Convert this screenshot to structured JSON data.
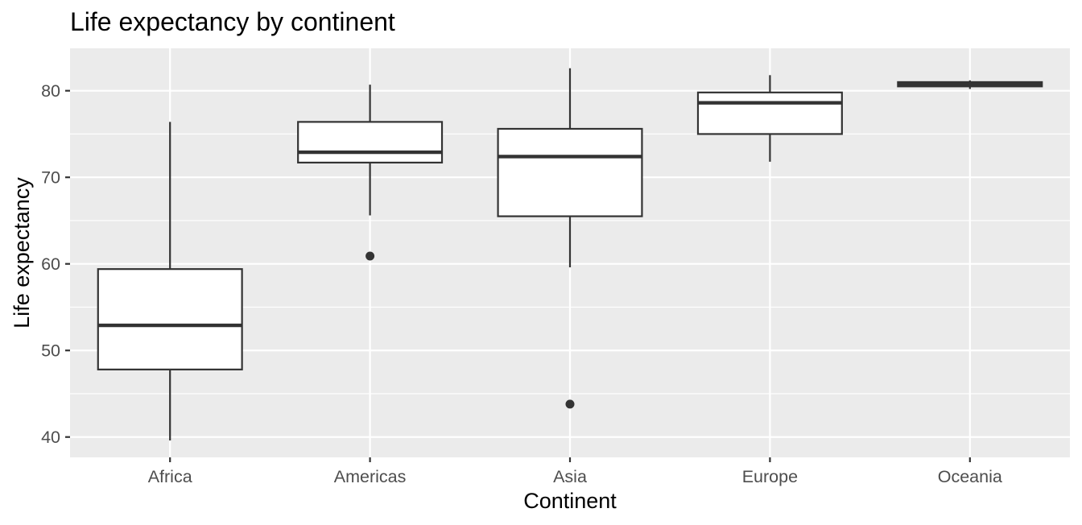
{
  "chart_data": {
    "type": "boxplot",
    "title": "Life expectancy by continent",
    "xlabel": "Continent",
    "ylabel": "Life expectancy",
    "categories": [
      "Africa",
      "Americas",
      "Asia",
      "Europe",
      "Oceania"
    ],
    "ylim": [
      37.65,
      84.9
    ],
    "yticks": [
      40,
      50,
      60,
      70,
      80
    ],
    "ytick_labels": [
      "40",
      "50",
      "60",
      "70",
      "80"
    ],
    "grid": true,
    "colors": {
      "panel": "#ebebeb",
      "grid": "#ffffff",
      "box_fill": "#ffffff",
      "box_line": "#333333",
      "tick_text": "#4d4d4d",
      "tick_mark": "#333333"
    },
    "boxes": [
      {
        "category": "Africa",
        "min": 39.6,
        "q1": 47.8,
        "median": 52.9,
        "q3": 59.4,
        "max": 76.4,
        "outliers": []
      },
      {
        "category": "Americas",
        "min": 65.6,
        "q1": 71.7,
        "median": 72.9,
        "q3": 76.4,
        "max": 80.7,
        "outliers": [
          60.9
        ]
      },
      {
        "category": "Asia",
        "min": 59.6,
        "q1": 65.5,
        "median": 72.4,
        "q3": 75.6,
        "max": 82.6,
        "outliers": [
          43.8
        ]
      },
      {
        "category": "Europe",
        "min": 71.8,
        "q1": 75.0,
        "median": 78.6,
        "q3": 79.8,
        "max": 81.8,
        "outliers": []
      },
      {
        "category": "Oceania",
        "min": 80.2,
        "q1": 80.5,
        "median": 80.7,
        "q3": 81.0,
        "max": 81.2,
        "outliers": []
      }
    ]
  }
}
